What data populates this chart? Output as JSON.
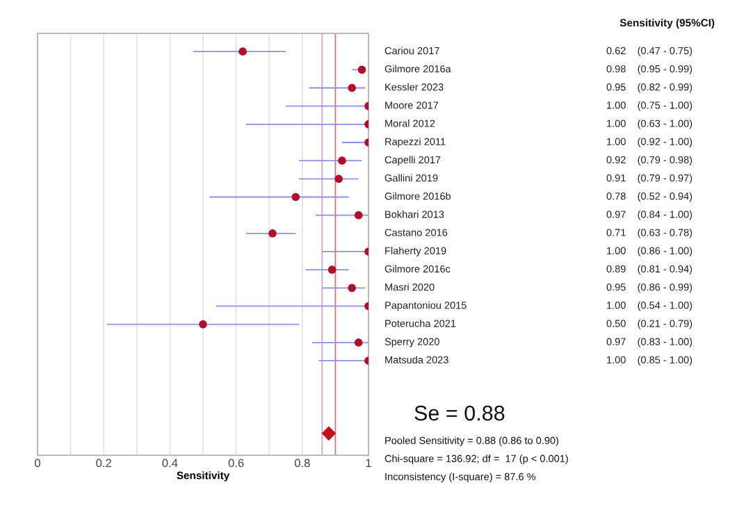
{
  "chart_data": {
    "type": "scatter",
    "orientation": "horizontal",
    "xlabel": "Sensitivity",
    "categories": [
      "Cariou 2017",
      "Gilmore 2016a",
      "Kessler 2023",
      "Moore 2017",
      "Moral 2012",
      "Rapezzi 2011",
      "Capelli 2017",
      "Gallini 2019",
      "Gilmore 2016b",
      "Bokhari 2013",
      "Castano 2016",
      "Flaherty 2019",
      "Gilmore 2016c",
      "Masri 2020",
      "Papantoniou 2015",
      "Poterucha 2021",
      "Sperry 2020",
      "Matsuda 2023",
      null,
      null,
      null,
      null
    ],
    "series": [
      {
        "color": "#b0102a",
        "marker": "circle",
        "values": [
          0.62,
          0.98,
          0.95,
          1.0,
          1.0,
          1.0,
          0.92,
          0.91,
          0.78,
          0.97,
          0.71,
          1.0,
          0.89,
          0.95,
          1.0,
          0.5,
          0.97,
          1.0,
          null,
          null,
          null,
          null
        ],
        "errors": [
          [
            0.47,
            0.75
          ],
          [
            0.95,
            0.99
          ],
          [
            0.82,
            0.99
          ],
          [
            0.75,
            1.0
          ],
          [
            0.63,
            1.0
          ],
          [
            0.92,
            1.0
          ],
          [
            0.79,
            0.98
          ],
          [
            0.79,
            0.97
          ],
          [
            0.52,
            0.94
          ],
          [
            0.84,
            1.0
          ],
          [
            0.63,
            0.78
          ],
          [
            0.86,
            1.0
          ],
          [
            0.81,
            0.94
          ],
          [
            0.86,
            0.99
          ],
          [
            0.54,
            1.0
          ],
          [
            0.21,
            0.79
          ],
          [
            0.83,
            1.0
          ],
          [
            0.85,
            1.0
          ],
          null,
          null,
          null,
          null
        ],
        "value_labels": [
          "0.62    (0.47 - 0.75)",
          "0.98    (0.95 - 0.99)",
          "0.95    (0.82 - 0.99)",
          "1.00    (0.75 - 1.00)",
          "1.00    (0.63 - 1.00)",
          "1.00    (0.92 - 1.00)",
          "0.92    (0.79 - 0.98)",
          "0.91    (0.79 - 0.97)",
          "0.78    (0.52 - 0.94)",
          "0.97    (0.84 - 1.00)",
          "0.71    (0.63 - 0.78)",
          "1.00    (0.86 - 1.00)",
          "0.89    (0.81 - 0.94)",
          "0.95    (0.86 - 0.99)",
          "1.00    (0.54 - 1.00)",
          "0.50    (0.21 - 0.79)",
          "0.97    (0.83 - 1.00)",
          "1.00    (0.85 - 1.00)",
          null,
          null,
          null,
          null
        ]
      },
      {
        "color": "#c0101e",
        "marker": "diamond",
        "values": [
          null,
          null,
          null,
          null,
          null,
          null,
          null,
          null,
          null,
          null,
          null,
          null,
          null,
          null,
          null,
          null,
          null,
          null,
          null,
          null,
          null,
          0.88
        ]
      }
    ],
    "xlim": [
      0,
      1
    ],
    "xticks": [
      0,
      {
        "value": 0.1,
        "label": null
      },
      0.2,
      {
        "value": 0.3,
        "label": null
      },
      0.4,
      {
        "value": 0.5,
        "label": null
      },
      0.6,
      {
        "value": 0.7,
        "label": null
      },
      0.8,
      {
        "value": 0.9,
        "label": null
      },
      1
    ],
    "ref_lines": [
      {
        "axis": "x",
        "value": 0.86,
        "color": "#b8a8c8"
      },
      {
        "axis": "x",
        "value": 0.9,
        "color": "#e07070"
      }
    ],
    "grid": "x",
    "legend": false,
    "tick_labels": "x",
    "annotations": [
      "Sensitivity (95%CI)",
      "Se = 0.88",
      "Pooled Sensitivity = 0.88 (0.86 to 0.90)",
      "Chi-square = 136.92; df =  17 (p < 0.001)",
      "Inconsistency (I-square) = 87.6 %"
    ]
  }
}
